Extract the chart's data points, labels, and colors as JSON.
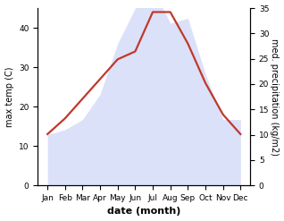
{
  "months": [
    "Jan",
    "Feb",
    "Mar",
    "Apr",
    "May",
    "Jun",
    "Jul",
    "Aug",
    "Sep",
    "Oct",
    "Nov",
    "Dec"
  ],
  "temp": [
    13,
    17,
    22,
    27,
    32,
    34,
    44,
    44,
    36,
    26,
    18,
    13
  ],
  "precip": [
    10,
    11,
    13,
    18,
    28,
    35,
    39,
    32,
    33,
    22,
    13,
    13
  ],
  "temp_color": "#c0392b",
  "precip_color": "#b0bdf0",
  "precip_fill_alpha": 0.45,
  "xlabel": "date (month)",
  "ylabel_left": "max temp (C)",
  "ylabel_right": "med. precipitation (kg/m2)",
  "ylim_left": [
    0,
    45
  ],
  "ylim_right": [
    0,
    35
  ],
  "yticks_left": [
    0,
    10,
    20,
    30,
    40
  ],
  "yticks_right": [
    0,
    5,
    10,
    15,
    20,
    25,
    30,
    35
  ],
  "bg_color": "#ffffff",
  "line_width": 1.6
}
